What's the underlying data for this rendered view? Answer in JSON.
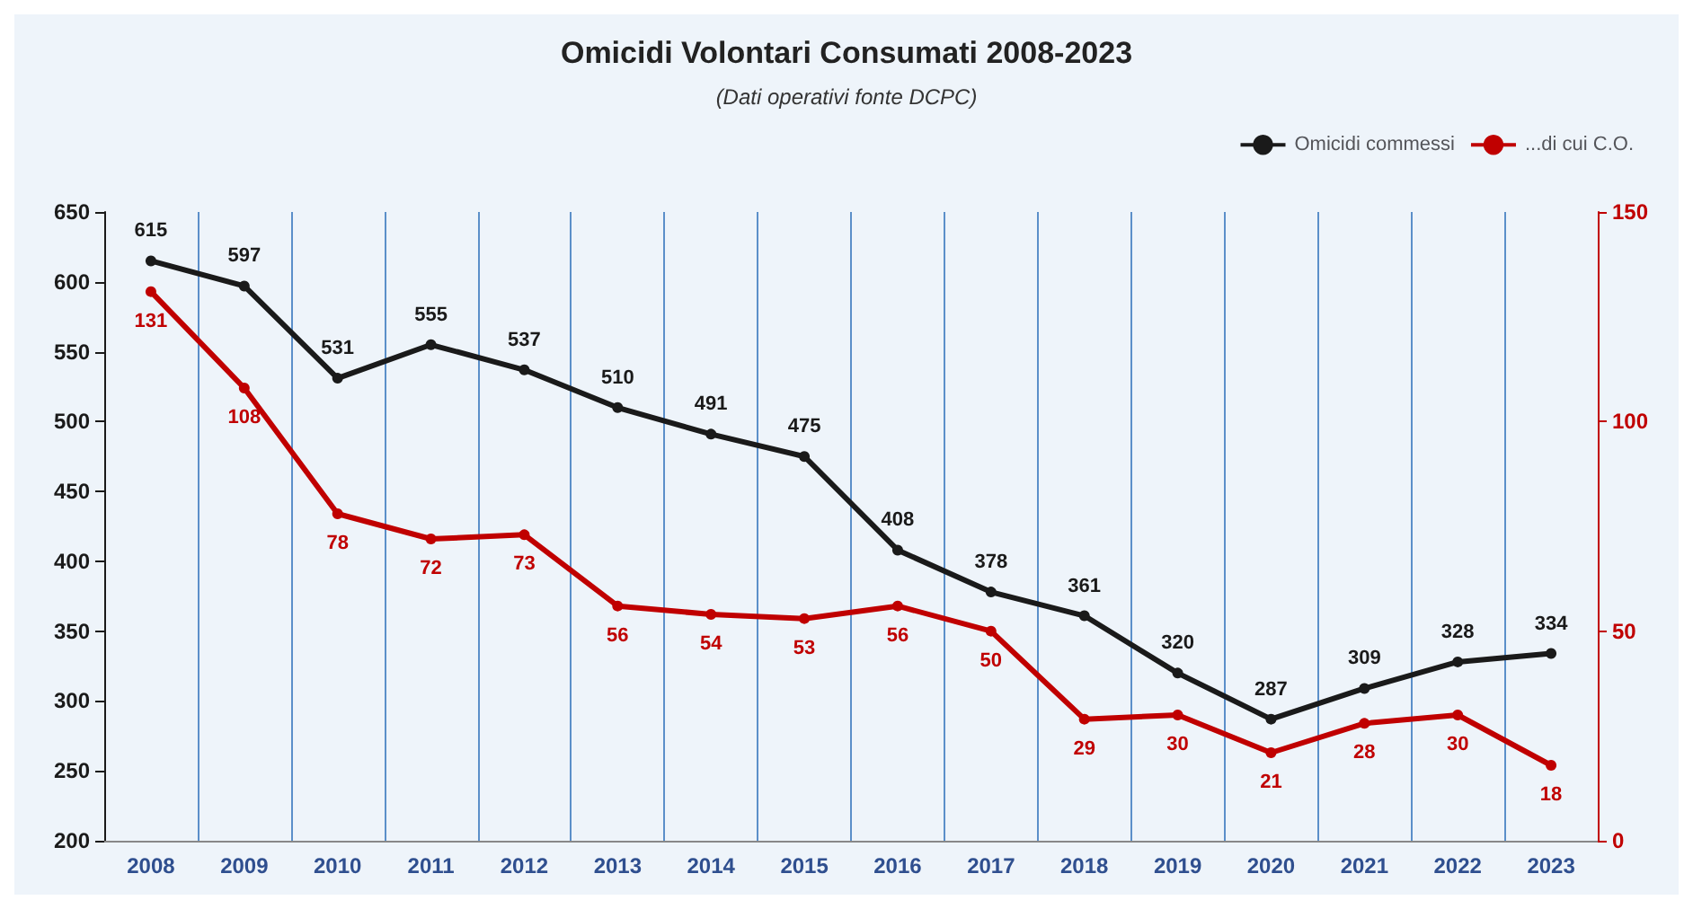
{
  "chart_data": {
    "type": "line",
    "title": "Omicidi Volontari Consumati 2008-2023",
    "subtitle": "(Dati operativi fonte DCPC)",
    "categories": [
      "2008",
      "2009",
      "2010",
      "2011",
      "2012",
      "2013",
      "2014",
      "2015",
      "2016",
      "2017",
      "2018",
      "2019",
      "2020",
      "2021",
      "2022",
      "2023"
    ],
    "series": [
      {
        "name": "Omicidi commessi",
        "color": "#1a1a1a",
        "values": [
          615,
          597,
          531,
          555,
          537,
          510,
          491,
          475,
          408,
          378,
          361,
          320,
          287,
          309,
          328,
          334
        ]
      },
      {
        "name": "...di cui C.O.",
        "color": "#c00000",
        "axis": "y2",
        "values": [
          131,
          108,
          78,
          72,
          73,
          56,
          54,
          53,
          56,
          50,
          29,
          30,
          21,
          28,
          30,
          18
        ]
      }
    ],
    "ylim": [
      200,
      650
    ],
    "yticks": [
      200,
      250,
      300,
      350,
      400,
      450,
      500,
      550,
      600,
      650
    ],
    "y2lim": [
      0,
      150
    ],
    "y2ticks": [
      0,
      50,
      100,
      150
    ],
    "data_labels": true,
    "grid": "x",
    "legend": "top right",
    "marker": "circle",
    "line_style": "solid"
  }
}
